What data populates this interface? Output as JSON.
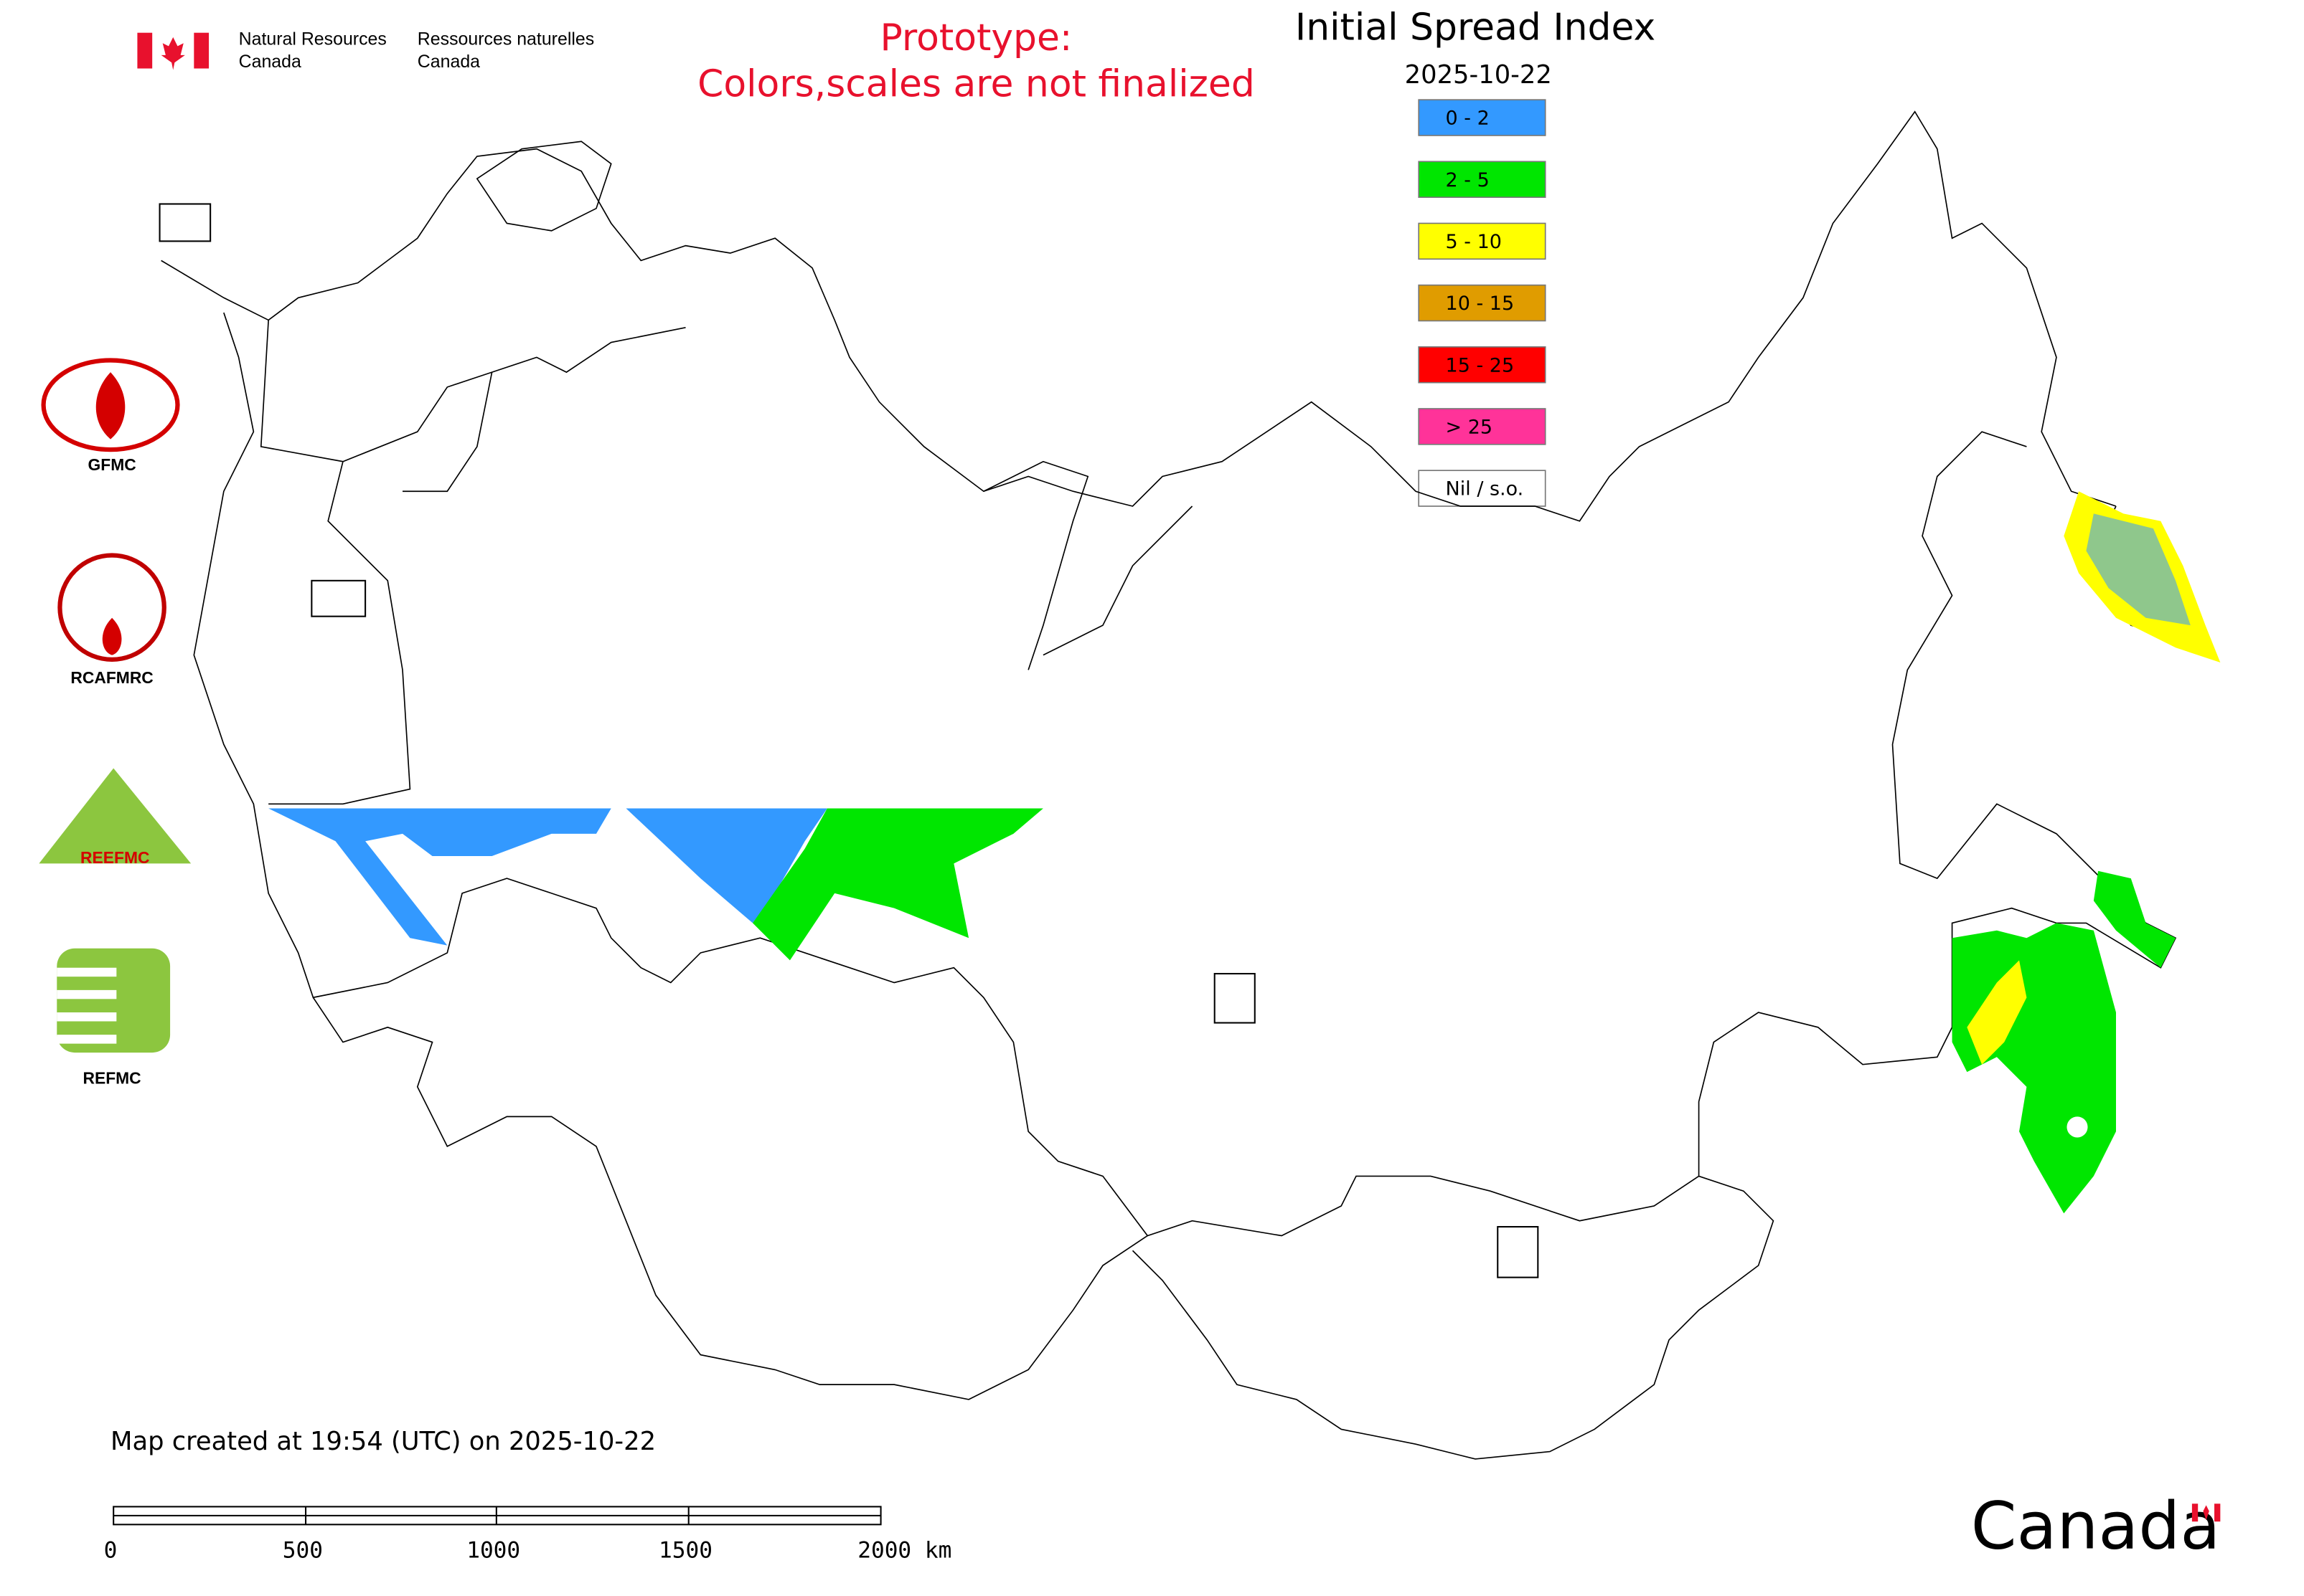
{
  "header": {
    "org_en": [
      "Natural Resources",
      "Canada"
    ],
    "org_fr": [
      "Ressources naturelles",
      "Canada"
    ],
    "prototype": [
      "Prototype:",
      "Colors,scales are not finalized"
    ]
  },
  "title": "Initial Spread Index",
  "date": "2025-10-22",
  "legend": [
    {
      "label": "0 - 2",
      "color": "#3399ff"
    },
    {
      "label": "2 - 5",
      "color": "#00e600"
    },
    {
      "label": "5 - 10",
      "color": "#ffff00"
    },
    {
      "label": "10 - 15",
      "color": "#e09c00"
    },
    {
      "label": "15 - 25",
      "color": "#ff0000"
    },
    {
      "label": "> 25",
      "color": "#ff3399"
    },
    {
      "label": "Nil / s.o.",
      "color": "#ffffff"
    }
  ],
  "logos": [
    "GFMC",
    "RCAFMRC",
    "REEFMC",
    "REFMC"
  ],
  "footer": "Map created at 19:54 (UTC) on 2025-10-22",
  "scale_bar": [
    "0",
    "500",
    "1000",
    "1500",
    "2000 km"
  ],
  "wordmark": "Canada"
}
